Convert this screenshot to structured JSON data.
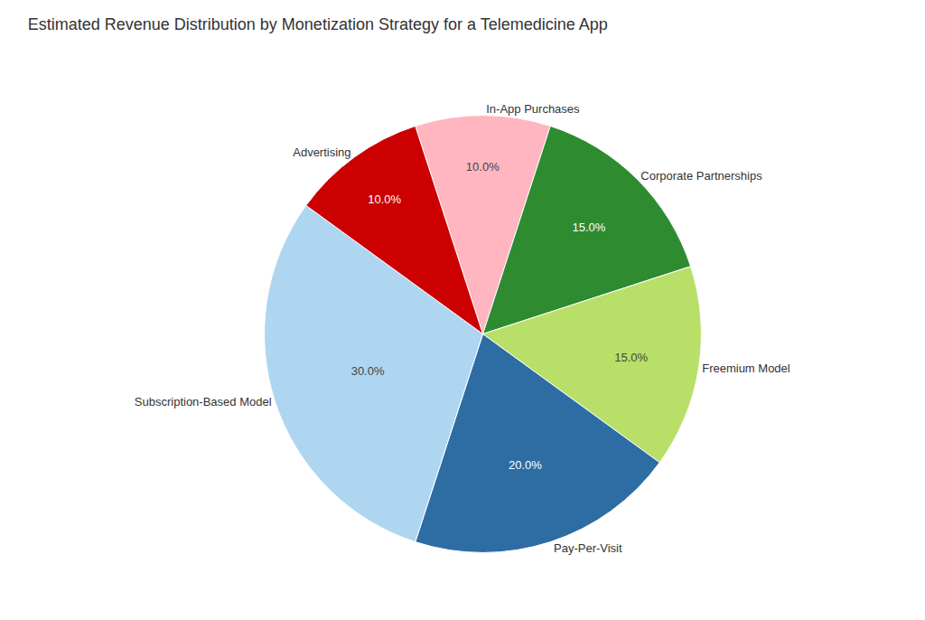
{
  "chart_data": {
    "type": "pie",
    "title": "Estimated Revenue Distribution by Monetization Strategy for a Telemedicine App",
    "categories": [
      "In-App Purchases",
      "Corporate Partnerships",
      "Freemium Model",
      "Pay-Per-Visit",
      "Subscription-Based Model",
      "Advertising"
    ],
    "values": [
      10.0,
      15.0,
      15.0,
      20.0,
      30.0,
      10.0
    ],
    "value_labels": [
      "10.0%",
      "15.0%",
      "15.0%",
      "20.0%",
      "30.0%",
      "10.0%"
    ],
    "colors": [
      "#FFB6C1",
      "#2E8B30",
      "#B8E068",
      "#2E6DA4",
      "#AED6F1",
      "#CC0000"
    ],
    "data_labels": true
  }
}
